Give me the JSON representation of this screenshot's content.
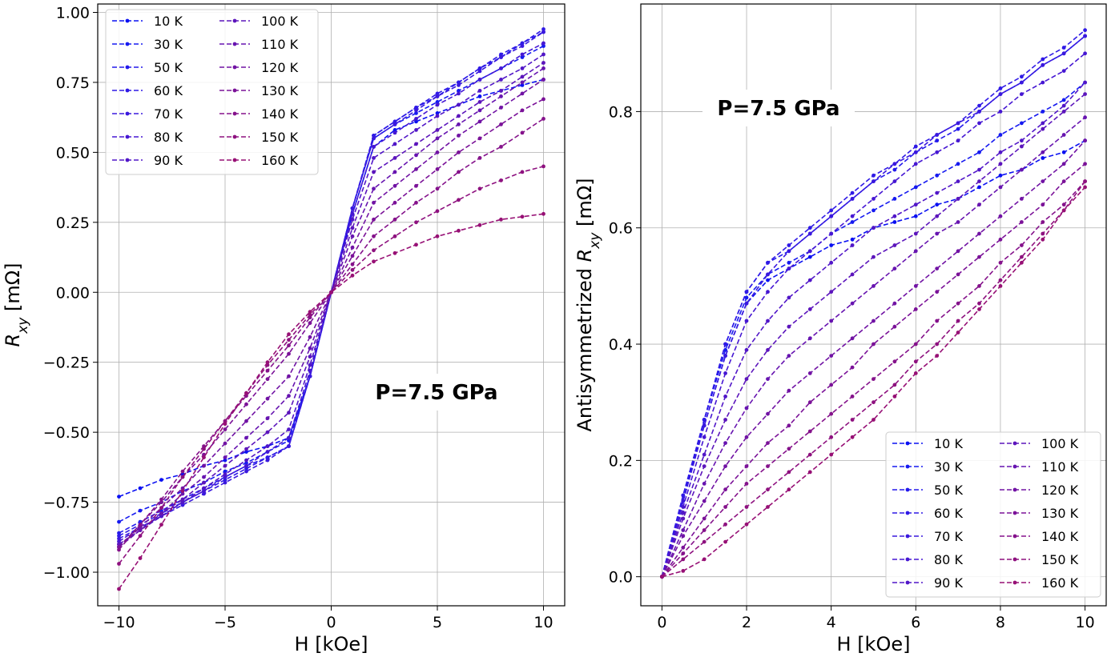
{
  "chart_data": [
    {
      "type": "line",
      "panel": "left",
      "title": "",
      "xlabel": "H [kOe]",
      "ylabel": {
        "main": "R",
        "sub": "xy",
        "unit": " [mΩ]"
      },
      "xlim": [
        -11,
        11
      ],
      "ylim": [
        -1.12,
        1.03
      ],
      "xticks": [
        -10,
        -5,
        0,
        5,
        10
      ],
      "xtick_labels": [
        "−10",
        "−5",
        "0",
        "5",
        "10"
      ],
      "yticks": [
        -1.0,
        -0.75,
        -0.5,
        -0.25,
        0.0,
        0.25,
        0.5,
        0.75,
        1.0
      ],
      "ytick_labels": [
        "−1.00",
        "−0.75",
        "−0.50",
        "−0.25",
        "0.00",
        "0.25",
        "0.50",
        "0.75",
        "1.00"
      ],
      "grid": true,
      "legend_placement": "upper-left",
      "legend_columns": 2,
      "annotation": "P=7.5 GPa",
      "x": [
        -10,
        -9,
        -8,
        -7,
        -6,
        -5,
        -4,
        -3,
        -2,
        -1,
        0,
        1,
        2,
        3,
        4,
        5,
        6,
        7,
        8,
        9,
        10
      ],
      "series": [
        {
          "name": "10 K",
          "values": [
            -0.73,
            -0.7,
            -0.67,
            -0.65,
            -0.62,
            -0.6,
            -0.57,
            -0.55,
            -0.52,
            -0.3,
            0.0,
            0.28,
            0.52,
            0.58,
            0.61,
            0.64,
            0.67,
            0.7,
            0.72,
            0.74,
            0.76
          ]
        },
        {
          "name": "30 K",
          "values": [
            -0.82,
            -0.78,
            -0.75,
            -0.71,
            -0.68,
            -0.64,
            -0.61,
            -0.57,
            -0.53,
            -0.3,
            0.0,
            0.3,
            0.55,
            0.6,
            0.64,
            0.68,
            0.72,
            0.76,
            0.8,
            0.84,
            0.88
          ]
        },
        {
          "name": "50 K",
          "values": [
            -0.86,
            -0.82,
            -0.78,
            -0.74,
            -0.7,
            -0.66,
            -0.62,
            -0.59,
            -0.55,
            -0.3,
            0.0,
            0.3,
            0.56,
            0.61,
            0.66,
            0.7,
            0.75,
            0.8,
            0.84,
            0.89,
            0.93
          ]
        },
        {
          "name": "60 K",
          "values": [
            -0.87,
            -0.83,
            -0.79,
            -0.75,
            -0.71,
            -0.67,
            -0.63,
            -0.59,
            -0.55,
            -0.3,
            0.0,
            0.3,
            0.56,
            0.61,
            0.66,
            0.71,
            0.75,
            0.8,
            0.85,
            0.89,
            0.94
          ]
        },
        {
          "name": "70 K",
          "values": [
            -0.88,
            -0.84,
            -0.8,
            -0.76,
            -0.72,
            -0.68,
            -0.64,
            -0.6,
            -0.55,
            -0.3,
            0.0,
            0.3,
            0.55,
            0.6,
            0.65,
            0.7,
            0.74,
            0.79,
            0.84,
            0.88,
            0.93
          ]
        },
        {
          "name": "80 K",
          "values": [
            -0.89,
            -0.84,
            -0.8,
            -0.75,
            -0.71,
            -0.66,
            -0.62,
            -0.57,
            -0.52,
            -0.28,
            0.0,
            0.28,
            0.52,
            0.57,
            0.62,
            0.67,
            0.71,
            0.76,
            0.8,
            0.85,
            0.89
          ]
        },
        {
          "name": "90 K",
          "values": [
            -0.9,
            -0.85,
            -0.8,
            -0.75,
            -0.7,
            -0.65,
            -0.6,
            -0.55,
            -0.49,
            -0.26,
            0.0,
            0.26,
            0.48,
            0.53,
            0.58,
            0.63,
            0.67,
            0.72,
            0.76,
            0.8,
            0.85
          ]
        },
        {
          "name": "100 K",
          "values": [
            -0.9,
            -0.85,
            -0.79,
            -0.74,
            -0.68,
            -0.62,
            -0.56,
            -0.5,
            -0.43,
            -0.23,
            0.0,
            0.23,
            0.43,
            0.48,
            0.53,
            0.58,
            0.63,
            0.68,
            0.72,
            0.77,
            0.82
          ]
        },
        {
          "name": "110 K",
          "values": [
            -0.91,
            -0.85,
            -0.79,
            -0.72,
            -0.66,
            -0.59,
            -0.52,
            -0.45,
            -0.37,
            -0.2,
            0.0,
            0.2,
            0.37,
            0.43,
            0.49,
            0.55,
            0.6,
            0.65,
            0.7,
            0.75,
            0.8
          ]
        },
        {
          "name": "120 K",
          "values": [
            -0.91,
            -0.84,
            -0.77,
            -0.7,
            -0.62,
            -0.54,
            -0.46,
            -0.38,
            -0.3,
            -0.16,
            0.0,
            0.16,
            0.32,
            0.38,
            0.44,
            0.5,
            0.56,
            0.61,
            0.66,
            0.71,
            0.76
          ]
        },
        {
          "name": "130 K",
          "values": [
            -0.91,
            -0.83,
            -0.75,
            -0.66,
            -0.58,
            -0.49,
            -0.4,
            -0.31,
            -0.22,
            -0.11,
            0.0,
            0.13,
            0.26,
            0.32,
            0.38,
            0.44,
            0.5,
            0.55,
            0.6,
            0.65,
            0.69
          ]
        },
        {
          "name": "140 K",
          "values": [
            -0.92,
            -0.83,
            -0.74,
            -0.64,
            -0.55,
            -0.46,
            -0.37,
            -0.28,
            -0.19,
            -0.09,
            0.0,
            0.1,
            0.2,
            0.26,
            0.32,
            0.37,
            0.43,
            0.48,
            0.52,
            0.57,
            0.62
          ]
        },
        {
          "name": "150 K",
          "values": [
            -0.97,
            -0.87,
            -0.77,
            -0.66,
            -0.56,
            -0.46,
            -0.36,
            -0.26,
            -0.17,
            -0.08,
            0.0,
            0.08,
            0.15,
            0.2,
            0.25,
            0.29,
            0.33,
            0.37,
            0.4,
            0.43,
            0.45
          ]
        },
        {
          "name": "160 K",
          "values": [
            -1.06,
            -0.95,
            -0.83,
            -0.71,
            -0.59,
            -0.47,
            -0.36,
            -0.25,
            -0.15,
            -0.07,
            0.0,
            0.06,
            0.11,
            0.14,
            0.17,
            0.2,
            0.22,
            0.24,
            0.26,
            0.27,
            0.28
          ]
        }
      ]
    },
    {
      "type": "line",
      "panel": "right",
      "title": "",
      "xlabel": "H [kOe]",
      "ylabel": {
        "main": "Antisymmetrized R",
        "sub": "xy",
        "unit": " [mΩ]"
      },
      "xlim": [
        -0.5,
        10.5
      ],
      "ylim": [
        -0.05,
        0.985
      ],
      "xticks": [
        0,
        2,
        4,
        6,
        8,
        10
      ],
      "xtick_labels": [
        "0",
        "2",
        "4",
        "6",
        "8",
        "10"
      ],
      "yticks": [
        0.0,
        0.2,
        0.4,
        0.6,
        0.8
      ],
      "ytick_labels": [
        "0.0",
        "0.2",
        "0.4",
        "0.6",
        "0.8"
      ],
      "grid": true,
      "legend_placement": "lower-right",
      "legend_columns": 2,
      "annotation": "P=7.5 GPa",
      "x": [
        0,
        0.5,
        1,
        1.5,
        2,
        2.5,
        3,
        3.5,
        4,
        4.5,
        5,
        5.5,
        6,
        6.5,
        7,
        7.5,
        8,
        8.5,
        9,
        9.5,
        10
      ],
      "series": [
        {
          "name": "10 K",
          "values": [
            0.0,
            0.13,
            0.26,
            0.38,
            0.47,
            0.51,
            0.53,
            0.55,
            0.57,
            0.58,
            0.6,
            0.61,
            0.62,
            0.64,
            0.65,
            0.67,
            0.69,
            0.7,
            0.72,
            0.73,
            0.75
          ]
        },
        {
          "name": "30 K",
          "values": [
            0.0,
            0.13,
            0.27,
            0.39,
            0.48,
            0.52,
            0.54,
            0.56,
            0.59,
            0.61,
            0.63,
            0.65,
            0.67,
            0.69,
            0.71,
            0.73,
            0.76,
            0.78,
            0.8,
            0.82,
            0.85
          ]
        },
        {
          "name": "50 K",
          "values": [
            0.0,
            0.14,
            0.27,
            0.4,
            0.49,
            0.54,
            0.56,
            0.59,
            0.62,
            0.65,
            0.68,
            0.7,
            0.73,
            0.75,
            0.77,
            0.8,
            0.83,
            0.85,
            0.88,
            0.9,
            0.93
          ]
        },
        {
          "name": "60 K",
          "values": [
            0.0,
            0.14,
            0.27,
            0.4,
            0.49,
            0.54,
            0.57,
            0.6,
            0.63,
            0.66,
            0.69,
            0.71,
            0.74,
            0.76,
            0.78,
            0.81,
            0.84,
            0.86,
            0.89,
            0.91,
            0.94
          ]
        },
        {
          "name": "70 K",
          "values": [
            0.0,
            0.13,
            0.26,
            0.38,
            0.47,
            0.52,
            0.56,
            0.59,
            0.62,
            0.65,
            0.68,
            0.71,
            0.73,
            0.76,
            0.78,
            0.8,
            0.83,
            0.85,
            0.88,
            0.9,
            0.93
          ]
        },
        {
          "name": "80 K",
          "values": [
            0.0,
            0.12,
            0.24,
            0.35,
            0.44,
            0.49,
            0.53,
            0.56,
            0.59,
            0.62,
            0.65,
            0.68,
            0.71,
            0.73,
            0.75,
            0.78,
            0.8,
            0.83,
            0.85,
            0.87,
            0.9
          ]
        },
        {
          "name": "90 K",
          "values": [
            0.0,
            0.11,
            0.21,
            0.31,
            0.39,
            0.44,
            0.48,
            0.51,
            0.54,
            0.57,
            0.6,
            0.62,
            0.64,
            0.66,
            0.68,
            0.7,
            0.73,
            0.75,
            0.78,
            0.81,
            0.85
          ]
        },
        {
          "name": "100 K",
          "values": [
            0.0,
            0.1,
            0.19,
            0.27,
            0.34,
            0.39,
            0.43,
            0.46,
            0.49,
            0.52,
            0.55,
            0.57,
            0.59,
            0.62,
            0.65,
            0.68,
            0.71,
            0.74,
            0.77,
            0.8,
            0.83
          ]
        },
        {
          "name": "110 K",
          "values": [
            0.0,
            0.08,
            0.16,
            0.23,
            0.29,
            0.34,
            0.38,
            0.41,
            0.44,
            0.47,
            0.5,
            0.53,
            0.56,
            0.59,
            0.61,
            0.64,
            0.67,
            0.7,
            0.73,
            0.76,
            0.79
          ]
        },
        {
          "name": "120 K",
          "values": [
            0.0,
            0.07,
            0.13,
            0.19,
            0.24,
            0.28,
            0.32,
            0.35,
            0.38,
            0.41,
            0.44,
            0.47,
            0.5,
            0.53,
            0.56,
            0.59,
            0.62,
            0.65,
            0.68,
            0.71,
            0.75
          ]
        },
        {
          "name": "130 K",
          "values": [
            0.0,
            0.05,
            0.1,
            0.15,
            0.19,
            0.23,
            0.26,
            0.3,
            0.33,
            0.36,
            0.4,
            0.43,
            0.46,
            0.49,
            0.52,
            0.55,
            0.58,
            0.61,
            0.64,
            0.68,
            0.71
          ]
        },
        {
          "name": "140 K",
          "values": [
            0.0,
            0.04,
            0.08,
            0.12,
            0.16,
            0.19,
            0.22,
            0.25,
            0.28,
            0.31,
            0.34,
            0.37,
            0.4,
            0.44,
            0.47,
            0.5,
            0.54,
            0.57,
            0.61,
            0.64,
            0.68
          ]
        },
        {
          "name": "150 K",
          "values": [
            0.0,
            0.03,
            0.06,
            0.09,
            0.12,
            0.15,
            0.18,
            0.21,
            0.24,
            0.27,
            0.3,
            0.33,
            0.37,
            0.4,
            0.44,
            0.47,
            0.51,
            0.55,
            0.59,
            0.63,
            0.68
          ]
        },
        {
          "name": "160 K",
          "values": [
            0.0,
            0.01,
            0.03,
            0.06,
            0.09,
            0.12,
            0.15,
            0.18,
            0.21,
            0.24,
            0.27,
            0.31,
            0.35,
            0.38,
            0.42,
            0.46,
            0.5,
            0.54,
            0.58,
            0.63,
            0.67
          ]
        }
      ]
    }
  ],
  "colors": [
    "#0a10f2",
    "#161af0",
    "#2319ec",
    "#2f19e6",
    "#3a18de",
    "#4617d3",
    "#5116c8",
    "#5c15bc",
    "#6714b0",
    "#7113a4",
    "#7b1298",
    "#85128b",
    "#8e117f",
    "#971075"
  ]
}
